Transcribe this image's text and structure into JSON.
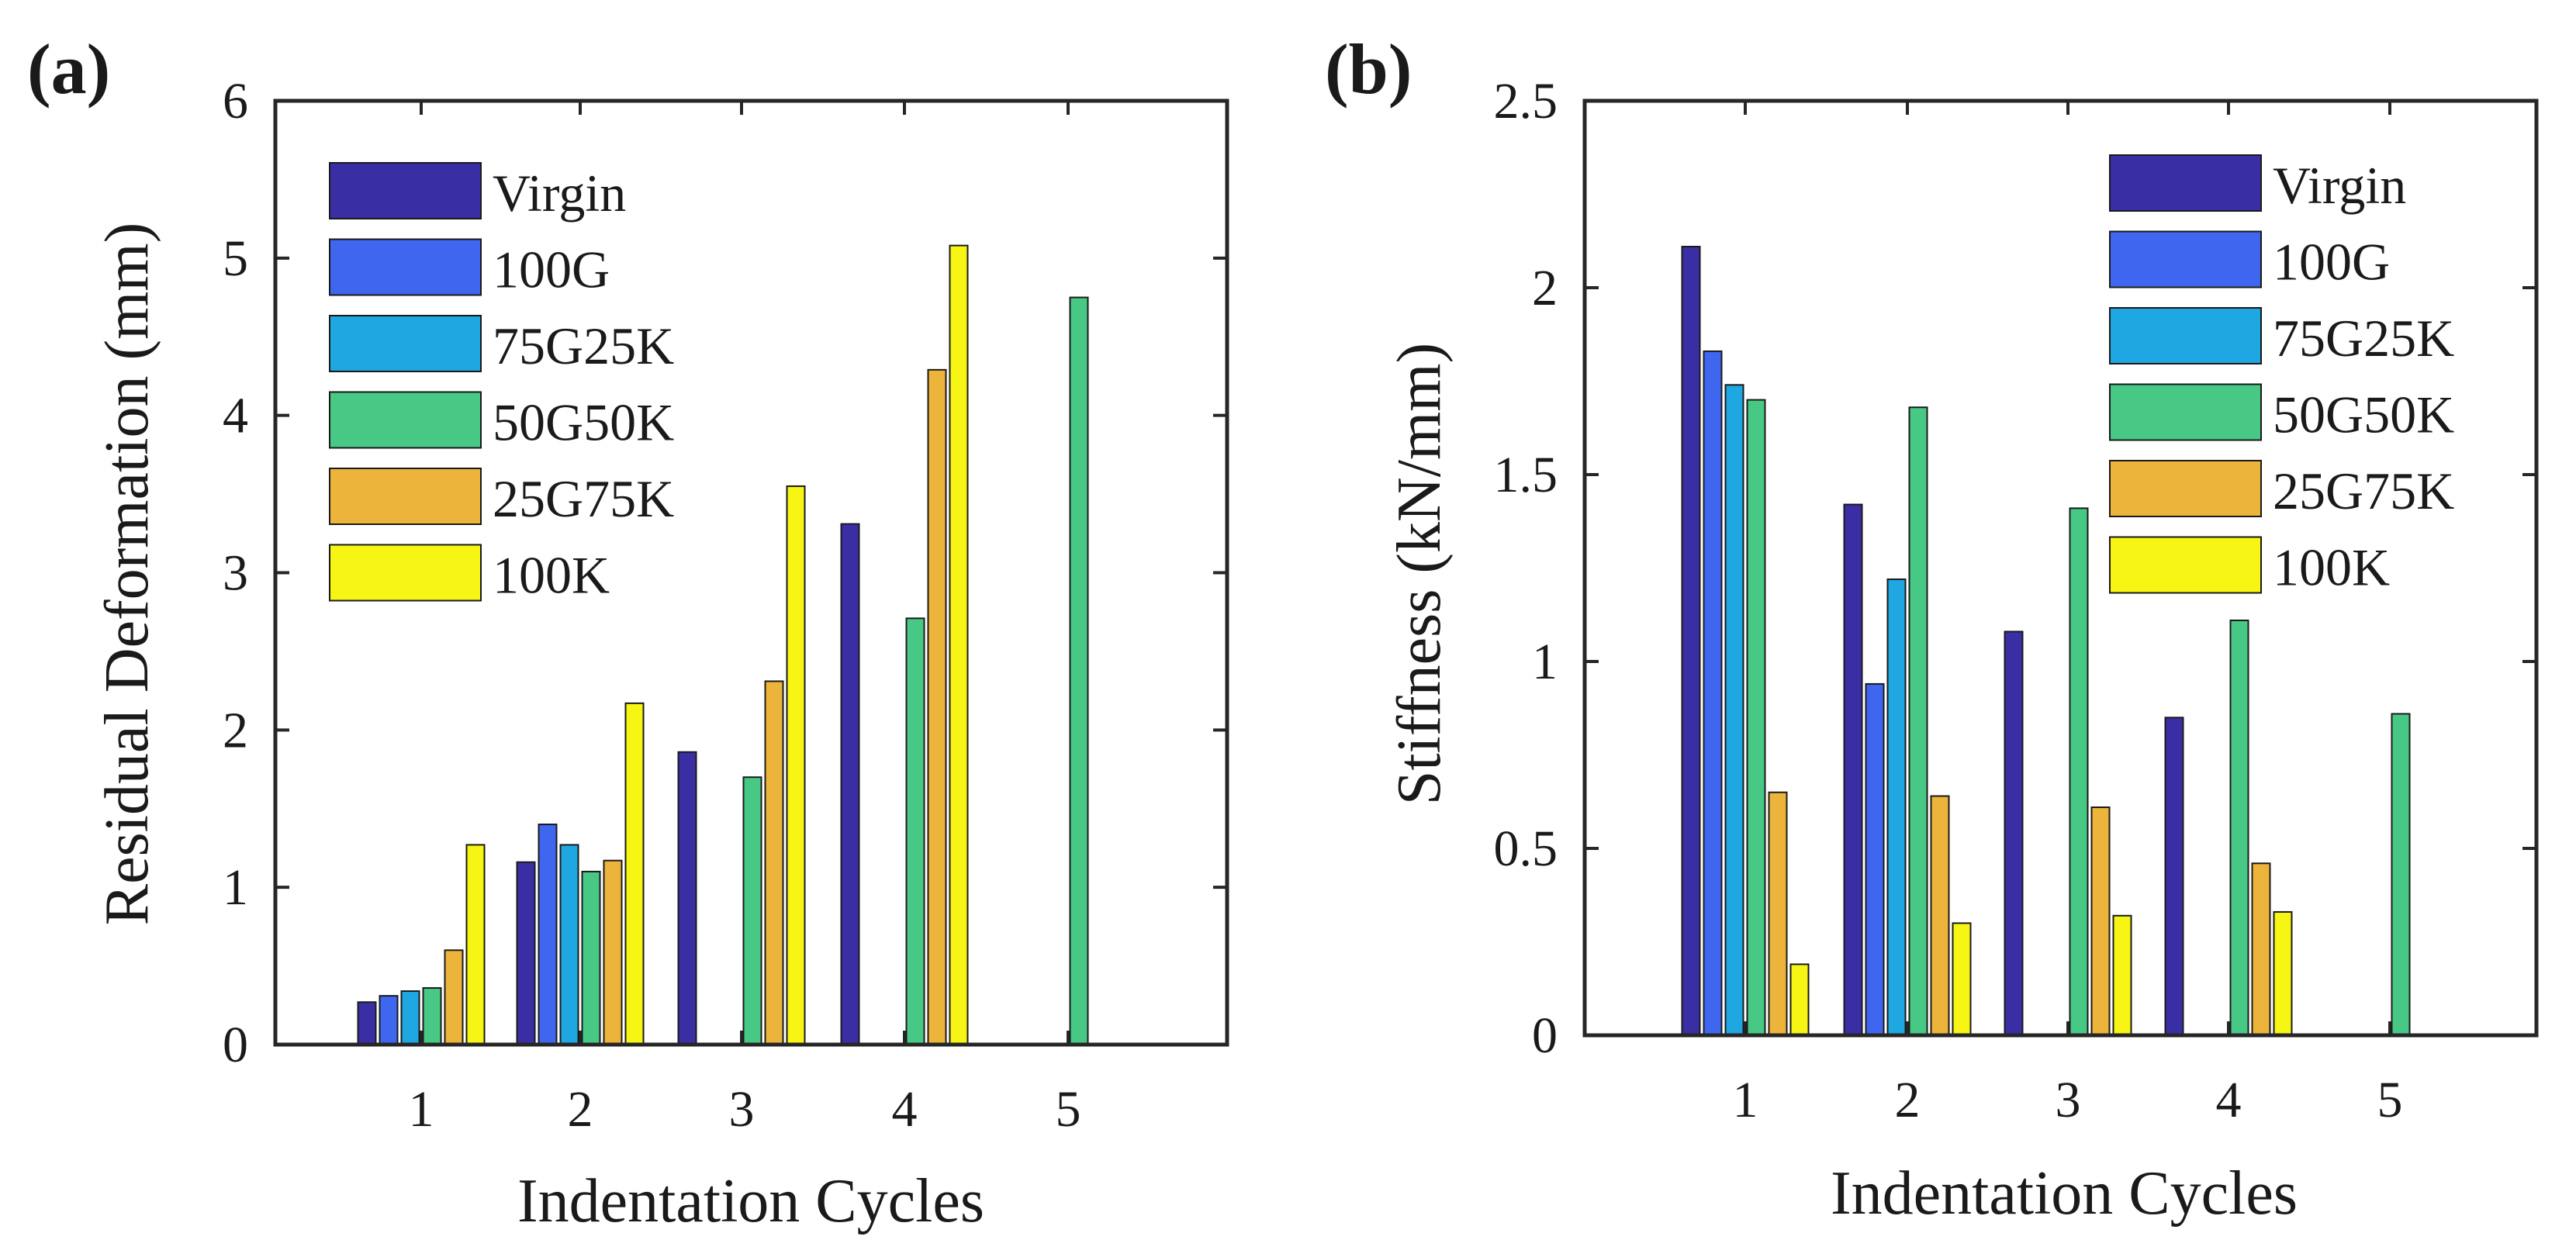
{
  "figure": {
    "panels": [
      "(a)",
      "(b)"
    ]
  },
  "chart_data": [
    {
      "type": "bar",
      "panel_label": "(a)",
      "title": "",
      "xlabel": "Indentation Cycles",
      "ylabel": "Residual Deformation (mm)",
      "categories": [
        "1",
        "2",
        "3",
        "4",
        "5"
      ],
      "ylim": [
        0,
        6
      ],
      "yticks": [
        "0",
        "1",
        "2",
        "3",
        "4",
        "5",
        "6"
      ],
      "grid": false,
      "legend_position": "top-left",
      "series": [
        {
          "name": "Virgin",
          "color": "#3a2ea5",
          "values": [
            0.27,
            1.16,
            1.86,
            3.31,
            0
          ]
        },
        {
          "name": "100G",
          "color": "#3f66ef",
          "values": [
            0.31,
            1.4,
            0,
            0,
            0
          ]
        },
        {
          "name": "75G25K",
          "color": "#1ea7e0",
          "values": [
            0.34,
            1.27,
            0,
            0,
            0
          ]
        },
        {
          "name": "50G50K",
          "color": "#47c985",
          "values": [
            0.36,
            1.1,
            1.7,
            2.71,
            4.75
          ]
        },
        {
          "name": "25G75K",
          "color": "#edb43b",
          "values": [
            0.6,
            1.17,
            2.31,
            4.29,
            0
          ]
        },
        {
          "name": "100K",
          "color": "#f7f514",
          "values": [
            1.27,
            2.17,
            3.55,
            5.08,
            0
          ]
        }
      ]
    },
    {
      "type": "bar",
      "panel_label": "(b)",
      "title": "",
      "xlabel": "Indentation Cycles",
      "ylabel": "Stiffness (kN/mm)",
      "categories": [
        "1",
        "2",
        "3",
        "4",
        "5"
      ],
      "ylim": [
        0,
        2.5
      ],
      "yticks": [
        "0",
        "0.5",
        "1",
        "1.5",
        "2",
        "2.5"
      ],
      "grid": false,
      "legend_position": "top-right",
      "series": [
        {
          "name": "Virgin",
          "color": "#3a2ea5",
          "values": [
            2.11,
            1.42,
            1.08,
            0.85,
            0
          ]
        },
        {
          "name": "100G",
          "color": "#3f66ef",
          "values": [
            1.83,
            0.94,
            0,
            0,
            0
          ]
        },
        {
          "name": "75G25K",
          "color": "#1ea7e0",
          "values": [
            1.74,
            1.22,
            0,
            0,
            0
          ]
        },
        {
          "name": "50G50K",
          "color": "#47c985",
          "values": [
            1.7,
            1.68,
            1.41,
            1.11,
            0.86
          ]
        },
        {
          "name": "25G75K",
          "color": "#edb43b",
          "values": [
            0.65,
            0.64,
            0.61,
            0.46,
            0
          ]
        },
        {
          "name": "100K",
          "color": "#f7f514",
          "values": [
            0.19,
            0.3,
            0.32,
            0.33,
            0
          ]
        }
      ]
    }
  ]
}
